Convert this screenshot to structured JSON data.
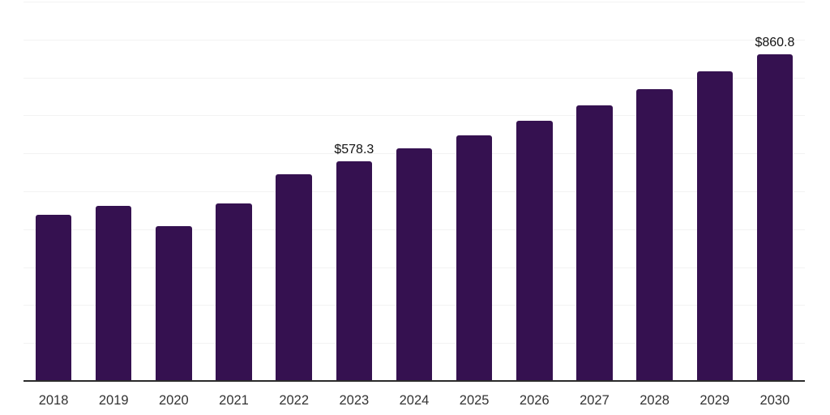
{
  "chart_data": {
    "type": "bar",
    "title": "",
    "xlabel": "",
    "ylabel": "",
    "categories": [
      "2018",
      "2019",
      "2020",
      "2021",
      "2022",
      "2023",
      "2024",
      "2025",
      "2026",
      "2027",
      "2028",
      "2029",
      "2030"
    ],
    "values": [
      437.7,
      460.6,
      409.2,
      467.6,
      544.7,
      578.3,
      613.2,
      646.8,
      685.3,
      726.6,
      769.4,
      815.9,
      860.8
    ],
    "data_labels": [
      "",
      "",
      "",
      "",
      "",
      "$578.3",
      "",
      "",
      "",
      "",
      "",
      "",
      "$860.8"
    ],
    "ylim": [
      0,
      1000
    ],
    "grid_step": 100,
    "grid": true,
    "legend_position": "none",
    "y_tick_labels_visible": false,
    "colors": {
      "bar": "#351150",
      "gridline": "#f3f3f3",
      "axis_line": "#2b2b2b",
      "x_tick_label": "#333333",
      "data_label": "#121212"
    }
  }
}
